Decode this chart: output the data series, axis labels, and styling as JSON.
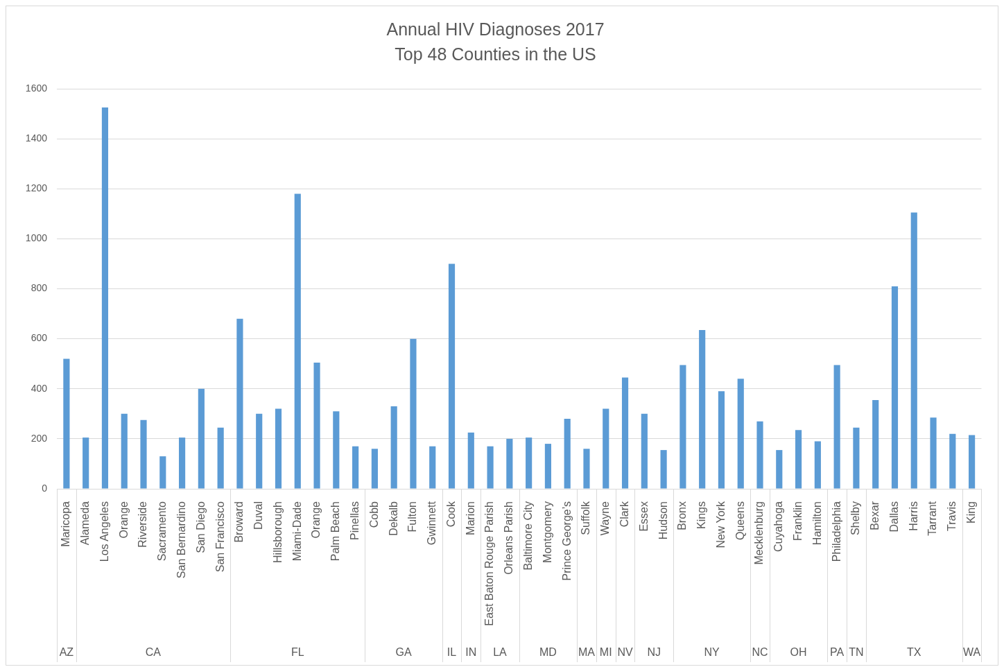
{
  "chart_data": {
    "type": "bar",
    "title": "Annual HIV Diagnoses 2017",
    "subtitle": "Top 48 Counties in the US",
    "categories": [
      "Maricopa",
      "Alameda",
      "Los Angeles",
      "Orange",
      "Riverside",
      "Sacramento",
      "San Bernardino",
      "San Diego",
      "San Francisco",
      "Broward",
      "Duval",
      "Hillsborough",
      "Miami-Dade",
      "Orange",
      "Palm Beach",
      "Pinellas",
      "Cobb",
      "Dekalb",
      "Fulton",
      "Gwinnett",
      "Cook",
      "Marion",
      "East Baton Rouge Parish",
      "Orleans Parish",
      "Baltimore City",
      "Montgomery",
      "Prince George’s",
      "Suffolk",
      "Wayne",
      "Clark",
      "Essex",
      "Hudson",
      "Bronx",
      "Kings",
      "New York",
      "Queens",
      "Mecklenburg",
      "Cuyahoga",
      "Franklin",
      "Hamilton",
      "Philadelphia",
      "Shelby",
      "Bexar",
      "Dallas",
      "Harris",
      "Tarrant",
      "Travis",
      "King"
    ],
    "values": [
      520,
      205,
      1525,
      300,
      275,
      130,
      205,
      400,
      245,
      680,
      300,
      320,
      1180,
      505,
      310,
      170,
      160,
      330,
      600,
      170,
      900,
      225,
      170,
      200,
      205,
      180,
      280,
      160,
      320,
      445,
      300,
      155,
      495,
      635,
      390,
      440,
      270,
      155,
      235,
      190,
      495,
      245,
      355,
      810,
      1105,
      285,
      220,
      215
    ],
    "color": "#5b9bd5",
    "ylim": [
      0,
      1600
    ],
    "yticks": [
      0,
      200,
      400,
      600,
      800,
      1000,
      1200,
      1400,
      1600
    ],
    "grid": "y",
    "annotations": [
      "AZ",
      "CA",
      "FL",
      "GA",
      "IL",
      "IN",
      "LA",
      "MD",
      "MA",
      "MI",
      "NV",
      "NJ",
      "NY",
      "NC",
      "OH",
      "PA",
      "TN",
      "TX",
      "WA"
    ]
  }
}
